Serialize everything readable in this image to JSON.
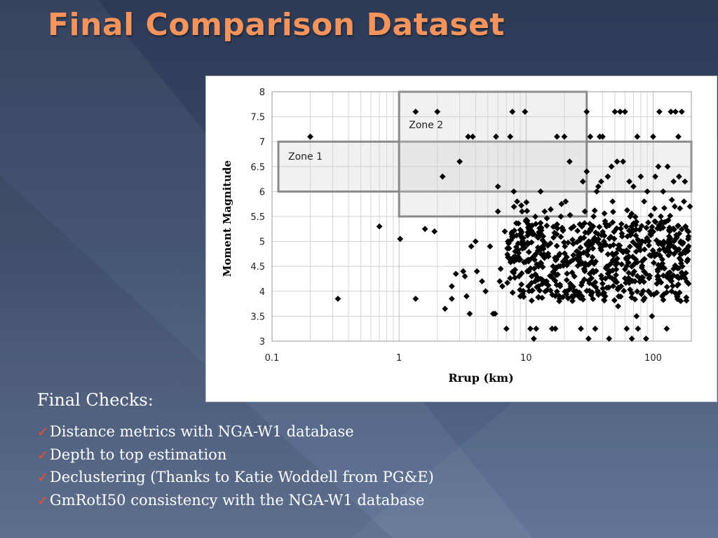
{
  "slide": {
    "title": "Final Comparison Dataset",
    "checks_heading": "Final Checks:",
    "checks": [
      "Distance metrics with NGA-W1 database",
      "Depth to top estimation",
      "Declustering (Thanks to Katie Woddell from PG&E)",
      "GmRotI50 consistency with the NGA-W1 database"
    ],
    "check_icon": "checkmark-icon",
    "colors": {
      "title": "#f4935c",
      "check": "#ff4a2a",
      "text": "#ffffff"
    }
  },
  "chart_data": {
    "type": "scatter",
    "xlabel": "Rrup (km)",
    "ylabel": "Moment Magnitude",
    "xscale": "log",
    "xlim": [
      0.1,
      200
    ],
    "ylim": [
      3,
      8
    ],
    "x_ticks": [
      "0.1",
      "1",
      "10",
      "100"
    ],
    "y_ticks": [
      "3",
      "3.5",
      "4",
      "4.5",
      "5",
      "5.5",
      "6",
      "6.5",
      "7",
      "7.5",
      "8"
    ],
    "grid": true,
    "legend": "none",
    "marker": "diamond",
    "marker_color": "#000000",
    "zones": [
      {
        "label": "Zone 1",
        "x": [
          0.1,
          200
        ],
        "y": [
          6,
          7
        ]
      },
      {
        "label": "Zone 2",
        "x": [
          1,
          30
        ],
        "y": [
          5.5,
          8
        ]
      }
    ],
    "points": [
      [
        0.2,
        7.1
      ],
      [
        0.33,
        3.85
      ],
      [
        0.7,
        5.3
      ],
      [
        1.02,
        5.05
      ],
      [
        1.35,
        3.85
      ],
      [
        1.35,
        7.6
      ],
      [
        1.6,
        5.25
      ],
      [
        1.9,
        5.2
      ],
      [
        2.0,
        7.6
      ],
      [
        2.2,
        6.3
      ],
      [
        2.3,
        3.65
      ],
      [
        2.6,
        3.85
      ],
      [
        2.6,
        4.1
      ],
      [
        2.8,
        4.35
      ],
      [
        3.0,
        6.6
      ],
      [
        3.2,
        4.4
      ],
      [
        3.3,
        4.3
      ],
      [
        3.4,
        3.9
      ],
      [
        3.5,
        7.1
      ],
      [
        3.6,
        3.55
      ],
      [
        3.7,
        4.9
      ],
      [
        3.8,
        7.1
      ],
      [
        4.0,
        5.0
      ],
      [
        4.1,
        4.4
      ],
      [
        4.5,
        4.2
      ],
      [
        4.8,
        4.0
      ],
      [
        5.2,
        4.9
      ],
      [
        5.5,
        3.55
      ],
      [
        5.7,
        3.55
      ],
      [
        5.8,
        7.1
      ],
      [
        6.0,
        5.6
      ],
      [
        6.0,
        6.1
      ],
      [
        6.2,
        4.2
      ],
      [
        6.3,
        4.45
      ],
      [
        6.5,
        4.1
      ],
      [
        6.8,
        5.2
      ],
      [
        7.0,
        3.25
      ],
      [
        7.2,
        5.0
      ],
      [
        7.5,
        7.1
      ],
      [
        7.8,
        7.6
      ],
      [
        8.0,
        6.0
      ],
      [
        8.2,
        4.8
      ],
      [
        8.5,
        5.8
      ],
      [
        8.8,
        4.3
      ],
      [
        9.0,
        3.9
      ],
      [
        9.3,
        5.6
      ],
      [
        9.5,
        4.0
      ],
      [
        9.8,
        7.6
      ],
      [
        10.0,
        4.6
      ],
      [
        10.5,
        4.4
      ],
      [
        10.8,
        3.25
      ],
      [
        11.0,
        5.3
      ],
      [
        11.5,
        3.05
      ],
      [
        12.0,
        3.25
      ],
      [
        12.5,
        4.1
      ],
      [
        13.0,
        6.0
      ],
      [
        13.5,
        4.9
      ],
      [
        14.0,
        5.6
      ],
      [
        14.5,
        4.2
      ],
      [
        15.0,
        4.7
      ],
      [
        16.0,
        3.25
      ],
      [
        17.0,
        3.25
      ],
      [
        17.5,
        7.1
      ],
      [
        18.0,
        4.5
      ],
      [
        19.0,
        5.75
      ],
      [
        20.0,
        7.1
      ],
      [
        20.5,
        5.8
      ],
      [
        21.0,
        4.0
      ],
      [
        22.0,
        6.6
      ],
      [
        23.0,
        3.9
      ],
      [
        24.0,
        4.3
      ],
      [
        25.0,
        4.8
      ],
      [
        26.0,
        3.9
      ],
      [
        27.0,
        3.25
      ],
      [
        28.0,
        6.2
      ],
      [
        29.0,
        5.6
      ],
      [
        30.0,
        7.6
      ],
      [
        30.0,
        6.4
      ],
      [
        31.0,
        3.05
      ],
      [
        32.0,
        7.1
      ],
      [
        33.0,
        4.6
      ],
      [
        34.0,
        5.5
      ],
      [
        35.0,
        3.25
      ],
      [
        36.0,
        6.0
      ],
      [
        37.0,
        6.1
      ],
      [
        38.0,
        7.1
      ],
      [
        39.0,
        6.2
      ],
      [
        40.0,
        7.1
      ],
      [
        41.0,
        5.0
      ],
      [
        42.0,
        3.9
      ],
      [
        43.0,
        5.3
      ],
      [
        44.0,
        6.3
      ],
      [
        45.0,
        3.05
      ],
      [
        46.0,
        4.4
      ],
      [
        47.0,
        6.5
      ],
      [
        48.0,
        5.8
      ],
      [
        50.0,
        7.6
      ],
      [
        52.0,
        6.6
      ],
      [
        53.0,
        3.7
      ],
      [
        55.0,
        7.6
      ],
      [
        56.0,
        4.1
      ],
      [
        57.0,
        5.1
      ],
      [
        58.0,
        6.6
      ],
      [
        60.0,
        7.6
      ],
      [
        62.0,
        3.25
      ],
      [
        63.0,
        4.8
      ],
      [
        65.0,
        6.2
      ],
      [
        66.0,
        5.5
      ],
      [
        68.0,
        3.05
      ],
      [
        70.0,
        6.1
      ],
      [
        72.0,
        4.2
      ],
      [
        74.0,
        3.5
      ],
      [
        75.0,
        7.1
      ],
      [
        76.0,
        3.25
      ],
      [
        78.0,
        5.0
      ],
      [
        80.0,
        6.3
      ],
      [
        82.0,
        4.6
      ],
      [
        85.0,
        5.8
      ],
      [
        88.0,
        3.05
      ],
      [
        90.0,
        6.0
      ],
      [
        92.0,
        4.0
      ],
      [
        95.0,
        5.2
      ],
      [
        98.0,
        3.5
      ],
      [
        100.0,
        7.1
      ],
      [
        104.0,
        6.3
      ],
      [
        108.0,
        4.3
      ],
      [
        110.0,
        6.5
      ],
      [
        112.0,
        7.6
      ],
      [
        115.0,
        5.5
      ],
      [
        118.0,
        3.9
      ],
      [
        120.0,
        6.0
      ],
      [
        125.0,
        4.8
      ],
      [
        128.0,
        3.25
      ],
      [
        130.0,
        6.5
      ],
      [
        135.0,
        5.2
      ],
      [
        138.0,
        7.6
      ],
      [
        140.0,
        4.0
      ],
      [
        145.0,
        6.2
      ],
      [
        148.0,
        5.7
      ],
      [
        150.0,
        7.6
      ],
      [
        155.0,
        3.9
      ],
      [
        158.0,
        7.1
      ],
      [
        160.0,
        6.3
      ],
      [
        165.0,
        5.0
      ],
      [
        168.0,
        7.6
      ],
      [
        170.0,
        4.5
      ],
      [
        175.0,
        5.8
      ],
      [
        178.0,
        6.2
      ],
      [
        180.0,
        5.3
      ],
      [
        185.0,
        4.6
      ],
      [
        190.0,
        5.1
      ],
      [
        195.0,
        5.7
      ]
    ]
  }
}
